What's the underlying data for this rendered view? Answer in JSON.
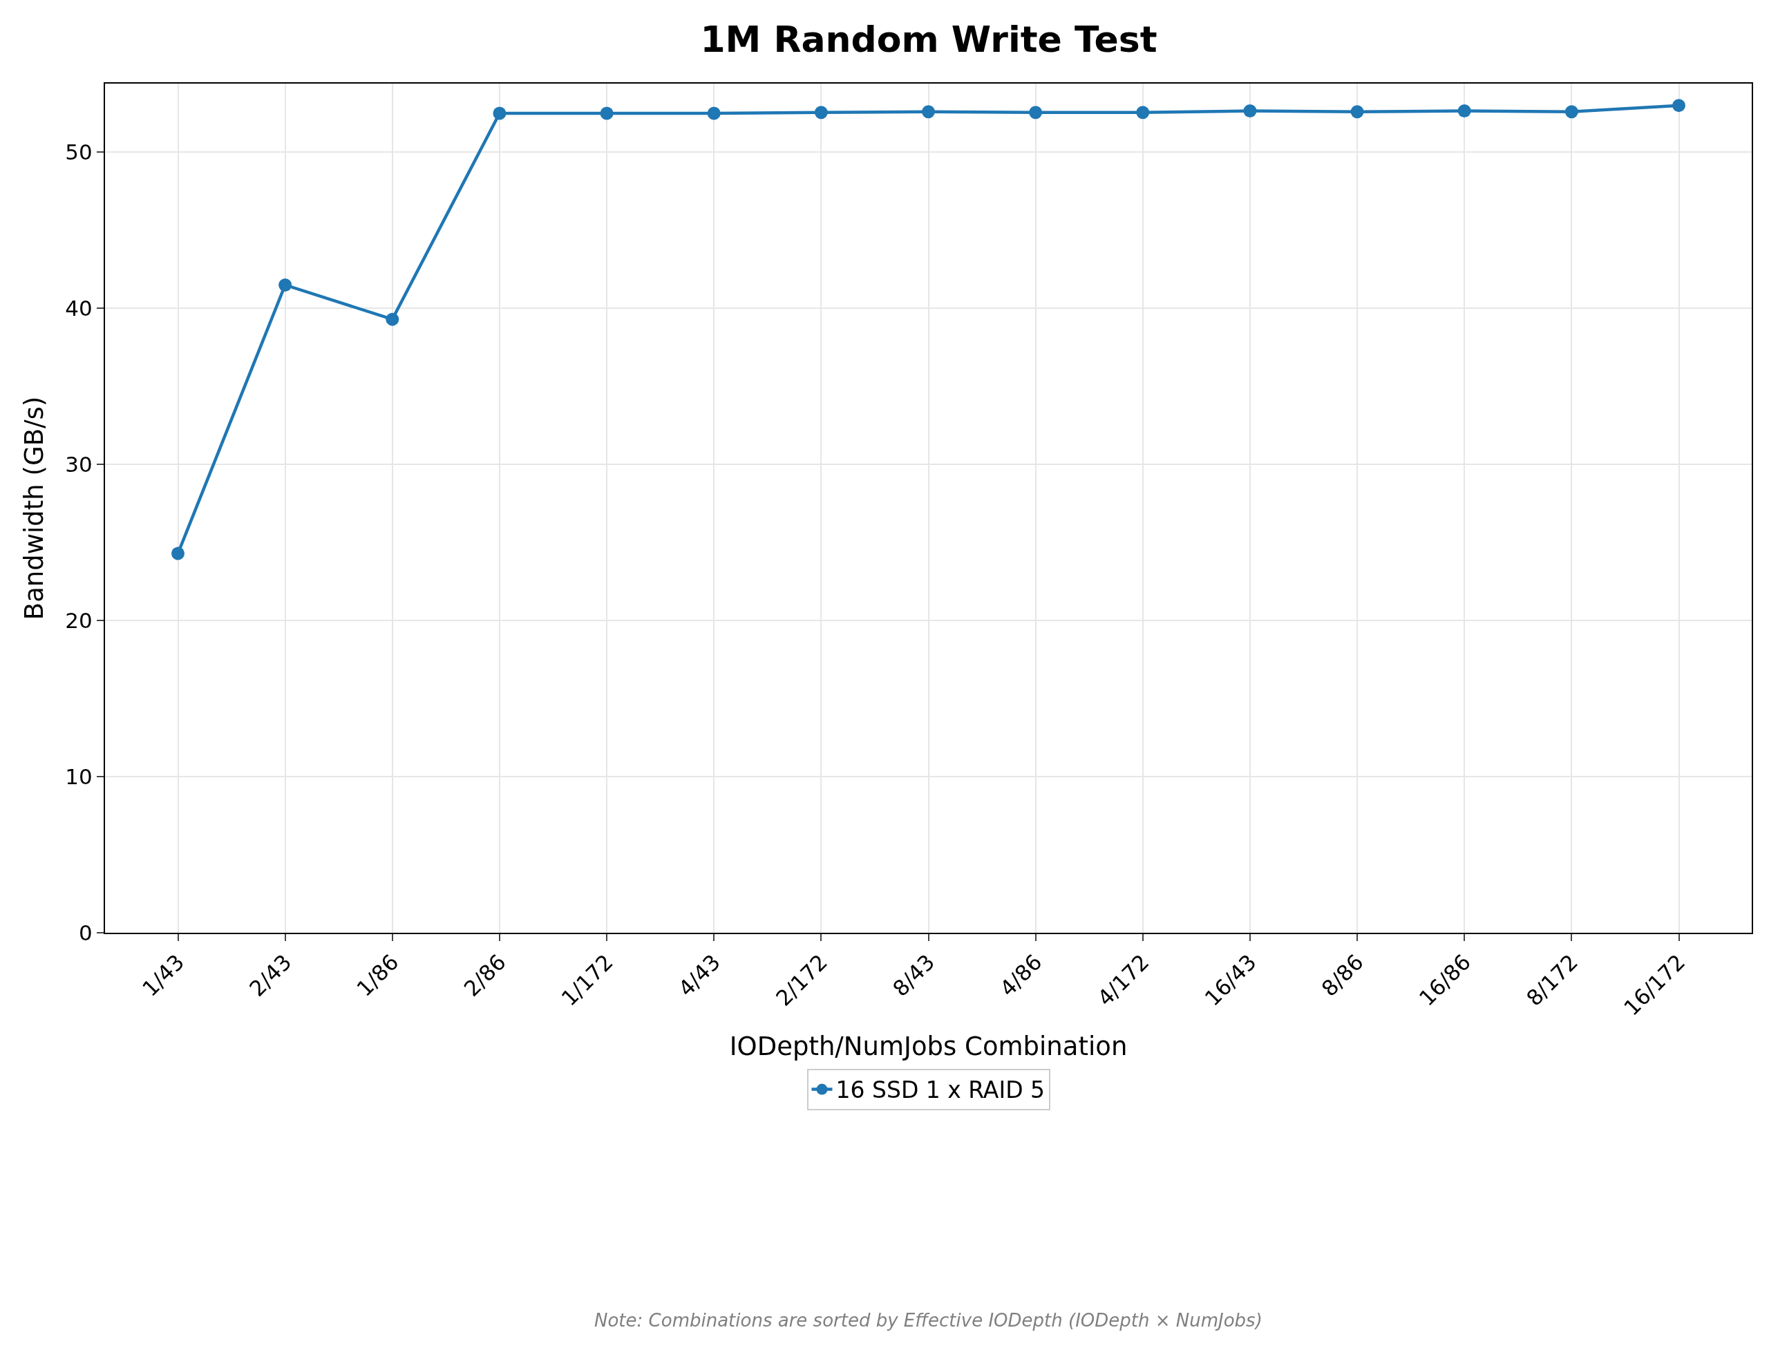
{
  "chart_data": {
    "type": "line",
    "title": "1M Random Write Test",
    "xlabel": "IODepth/NumJobs Combination",
    "ylabel": "Bandwidth (GB/s)",
    "categories": [
      "1/43",
      "2/43",
      "1/86",
      "2/86",
      "1/172",
      "4/43",
      "2/172",
      "8/43",
      "4/86",
      "4/172",
      "16/43",
      "8/86",
      "16/86",
      "8/172",
      "16/172"
    ],
    "series": [
      {
        "name": "16 SSD 1 x RAID 5",
        "color": "#1f77b4",
        "values": [
          24.3,
          41.5,
          39.3,
          52.5,
          52.5,
          52.5,
          52.55,
          52.6,
          52.55,
          52.55,
          52.65,
          52.6,
          52.65,
          52.6,
          53.0
        ]
      }
    ],
    "ylim": [
      0,
      54.4
    ],
    "yticks": [
      0,
      10,
      20,
      30,
      40,
      50
    ],
    "grid": true,
    "legend": "bottom",
    "marker": "circle",
    "line_style": "solid",
    "annotations": [
      "Note: Combinations are sorted by Effective IODepth (IODepth × NumJobs)"
    ]
  }
}
